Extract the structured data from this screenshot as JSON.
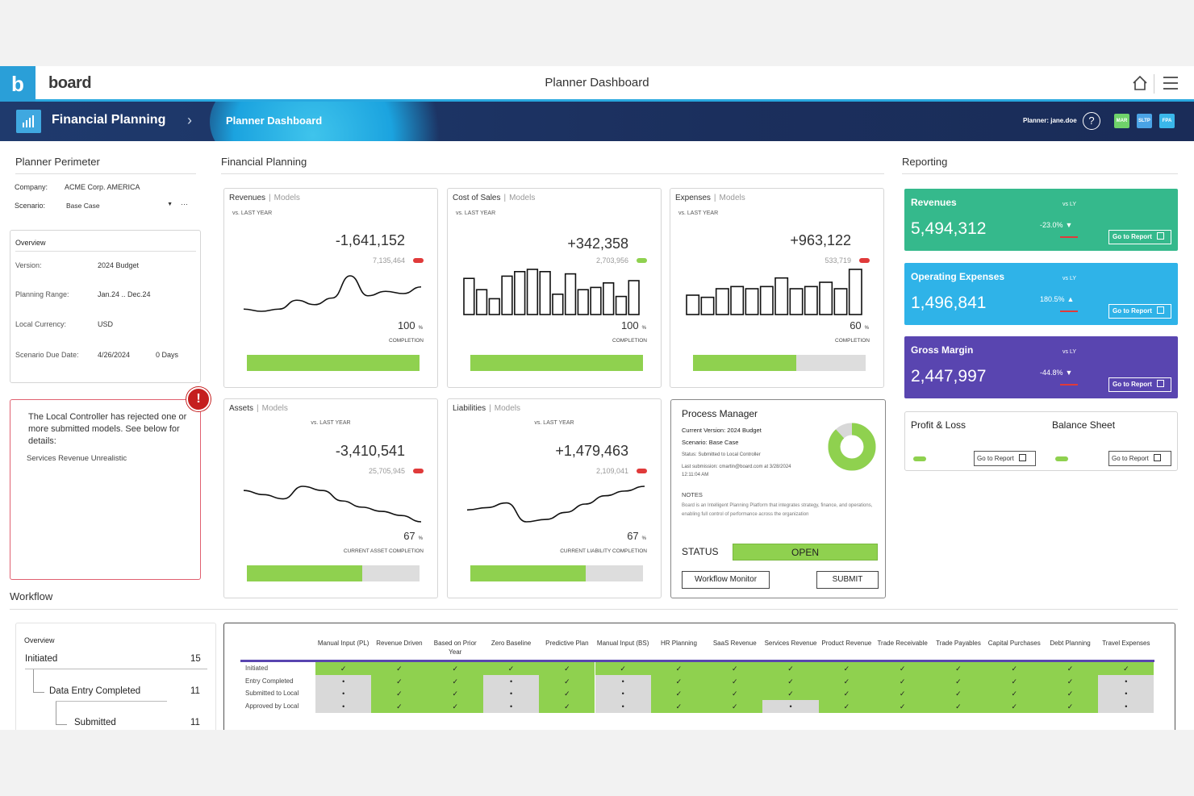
{
  "app": {
    "logo_letter": "b",
    "logo_text": "board",
    "title": "Planner Dashboard"
  },
  "navbar": {
    "section": "Financial Planning",
    "crumb": "Planner Dashboard",
    "user": "Planner: jane.doe",
    "help": "?",
    "badges": [
      {
        "label": "MAR",
        "color": "#6fd36a"
      },
      {
        "label": "SLTP",
        "color": "#4aa3e6"
      },
      {
        "label": "FPA",
        "color": "#3ab7ea"
      }
    ]
  },
  "perimeter": {
    "title": "Planner Perimeter",
    "company_label": "Company:",
    "company_value": "ACME Corp. AMERICA",
    "scenario_label": "Scenario:",
    "scenario_value": "Base Case",
    "more": "···"
  },
  "overview": {
    "title": "Overview",
    "version_label": "Version:",
    "version_value": "2024 Budget",
    "range_label": "Planning Range:",
    "range_value": "Jan.24 .. Dec.24",
    "currency_label": "Local Currency:",
    "currency_value": "USD",
    "due_label": "Scenario Due Date:",
    "due_value": "4/26/2024",
    "due_days": "0 Days"
  },
  "alert": {
    "icon": "!",
    "message": "The Local Controller has rejected one or more submitted models. See below for details:",
    "detail": "Services Revenue  Unrealistic"
  },
  "fp": {
    "title": "Financial Planning",
    "models": "Models",
    "sep": "|",
    "cards": [
      {
        "name": "Revenues",
        "sub": "vs. LAST YEAR",
        "delta": "-1,641,152",
        "prev": "7,135,464",
        "prev_status": "red",
        "pct": "100",
        "pct_unit": "%",
        "completion_label": "COMPLETION",
        "completion": 100,
        "chart": "line",
        "series": [
          30,
          29,
          30,
          34,
          32,
          35,
          45,
          36,
          38,
          37,
          40
        ]
      },
      {
        "name": "Cost of Sales",
        "sub": "vs. LAST YEAR",
        "delta": "+342,358",
        "prev": "2,703,956",
        "prev_status": "green",
        "pct": "100",
        "pct_unit": "%",
        "completion_label": "COMPLETION",
        "completion": 100,
        "chart": "bars",
        "series": [
          80,
          55,
          35,
          85,
          95,
          100,
          95,
          45,
          90,
          55,
          60,
          70,
          40,
          75
        ]
      },
      {
        "name": "Expenses",
        "sub": "vs. LAST YEAR",
        "delta": "+963,122",
        "prev": "533,719",
        "prev_status": "red",
        "pct": "60",
        "pct_unit": "%",
        "completion_label": "COMPLETION",
        "completion": 60,
        "chart": "bars",
        "series": [
          45,
          40,
          60,
          65,
          60,
          65,
          85,
          60,
          65,
          75,
          60,
          105
        ]
      },
      {
        "name": "Assets",
        "sub": "vs. LAST YEAR",
        "delta": "-3,410,541",
        "prev": "25,705,945",
        "prev_status": "red",
        "pct": "67",
        "pct_unit": "%",
        "completion_label": "CURRENT ASSET COMPLETION",
        "completion": 67,
        "chart": "line",
        "series": [
          52,
          50,
          48,
          54,
          52,
          47,
          44,
          42,
          40,
          37
        ]
      },
      {
        "name": "Liabilities",
        "sub": "vs. LAST YEAR",
        "delta": "+1,479,463",
        "prev": "2,109,041",
        "prev_status": "red",
        "pct": "67",
        "pct_unit": "%",
        "completion_label": "CURRENT LIABILITY COMPLETION",
        "completion": 67,
        "chart": "line",
        "series": [
          40,
          42,
          46,
          30,
          32,
          38,
          45,
          52,
          56,
          60
        ]
      }
    ]
  },
  "process": {
    "title": "Process Manager",
    "version": "Current Version: 2024 Budget",
    "scenario": "Scenario: Base Case",
    "status_line": "Status:  Submitted to Local Controller",
    "last_sub": "Last submission: cmartin@board.com at 3/28/2024 12:11:04 AM",
    "notes_label": "NOTES",
    "notes": "Board is an Intelligent Planning Platform that integrates strategy, finance, and operations, enabling full control of performance across the organization",
    "status_label": "STATUS",
    "status_value": "OPEN",
    "workflow_btn": "Workflow Monitor",
    "submit_btn": "SUBMIT",
    "donut_share": 0.88
  },
  "reporting": {
    "title": "Reporting",
    "vs": "vs LY",
    "go": "Go to Report",
    "kpis": [
      {
        "name": "Revenues",
        "value": "5,494,312",
        "delta": "-23.0%",
        "arrow": "▼",
        "color": "#35b98c"
      },
      {
        "name": "Operating Expenses",
        "value": "1,496,841",
        "delta": "180.5%",
        "arrow": "▲",
        "color": "#2fb3e8"
      },
      {
        "name": "Gross Margin",
        "value": "2,447,997",
        "delta": "-44.8%",
        "arrow": "▼",
        "color": "#5945b0"
      }
    ],
    "pl": "Profit & Loss",
    "bs": "Balance Sheet"
  },
  "workflow": {
    "title": "Workflow",
    "tree": {
      "title": "Overview",
      "items": [
        {
          "label": "Initiated",
          "count": "15"
        },
        {
          "label": "Data Entry Completed",
          "count": "11"
        },
        {
          "label": "Submitted",
          "count": "11"
        }
      ]
    },
    "columns": [
      "Manual Input (PL)",
      "Revenue Driven",
      "Based on Prior Year",
      "Zero Baseline",
      "Predictive Plan",
      "Manual Input (BS)",
      "HR Planning",
      "SaaS Revenue",
      "Services Revenue",
      "Product Revenue",
      "Trade Receivable",
      "Trade Payables",
      "Capital Purchases",
      "Debt Planning",
      "Travel Expenses"
    ],
    "rows": [
      "Initiated",
      "Entry Completed",
      "Submitted to Local",
      "Approved by Local"
    ],
    "check": "✓",
    "dot": "•",
    "grid": [
      "ccccccccccccccc",
      "dccdcdccccccccd",
      "dccdcdccccccccd",
      "dccdcdccdcccccd"
    ]
  }
}
